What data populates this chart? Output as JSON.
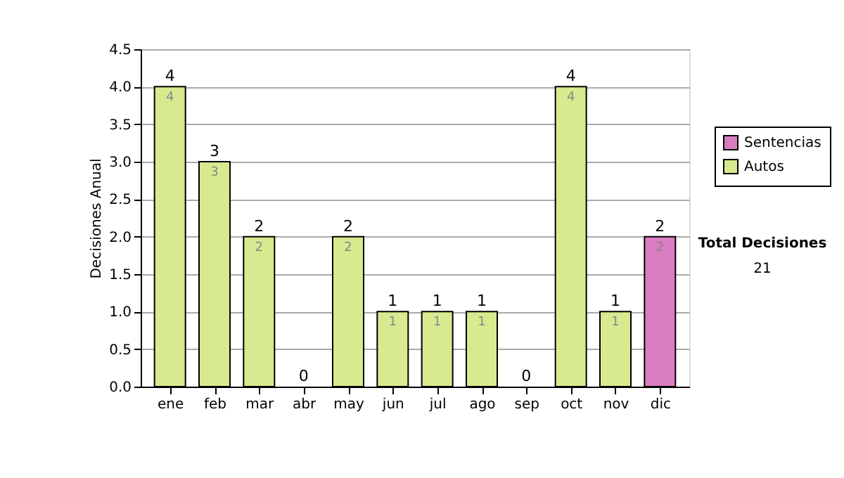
{
  "chart_data": {
    "type": "bar",
    "ylabel": "Decisiones Anual",
    "categories": [
      "ene",
      "feb",
      "mar",
      "abr",
      "may",
      "jun",
      "jul",
      "ago",
      "sep",
      "oct",
      "nov",
      "dic"
    ],
    "stacked": true,
    "series": [
      {
        "name": "Sentencias",
        "color": "#d97cc0",
        "values": [
          0,
          0,
          0,
          0,
          0,
          0,
          0,
          0,
          0,
          0,
          0,
          2
        ],
        "value_labels": [
          null,
          null,
          null,
          null,
          null,
          null,
          null,
          null,
          null,
          null,
          null,
          "2"
        ]
      },
      {
        "name": "Autos",
        "color": "#d7ea8f",
        "values": [
          4,
          3,
          2,
          0,
          2,
          1,
          1,
          1,
          0,
          4,
          1,
          0
        ],
        "value_labels": [
          "4",
          "3",
          "2",
          null,
          "2",
          "1",
          "1",
          "1",
          null,
          "4",
          "1",
          null
        ]
      }
    ],
    "totals": [
      "4",
      "3",
      "2",
      "0",
      "2",
      "1",
      "1",
      "1",
      "0",
      "4",
      "1",
      "2"
    ],
    "ylim": [
      0,
      4.5
    ],
    "yticks": [
      {
        "value": 0,
        "label": "0.0"
      },
      {
        "value": 0.5,
        "label": "0.5"
      },
      {
        "value": 1,
        "label": "1.0"
      },
      {
        "value": 1.5,
        "label": "1.5"
      },
      {
        "value": 2,
        "label": "2.0"
      },
      {
        "value": 2.5,
        "label": "2.5"
      },
      {
        "value": 3,
        "label": "3.0"
      },
      {
        "value": 3.5,
        "label": "3.5"
      },
      {
        "value": 4,
        "label": "4.0"
      },
      {
        "value": 4.5,
        "label": "4.5"
      }
    ],
    "grid": "y",
    "legend": "right",
    "annotations": [
      "Total Decisiones",
      "21"
    ]
  }
}
